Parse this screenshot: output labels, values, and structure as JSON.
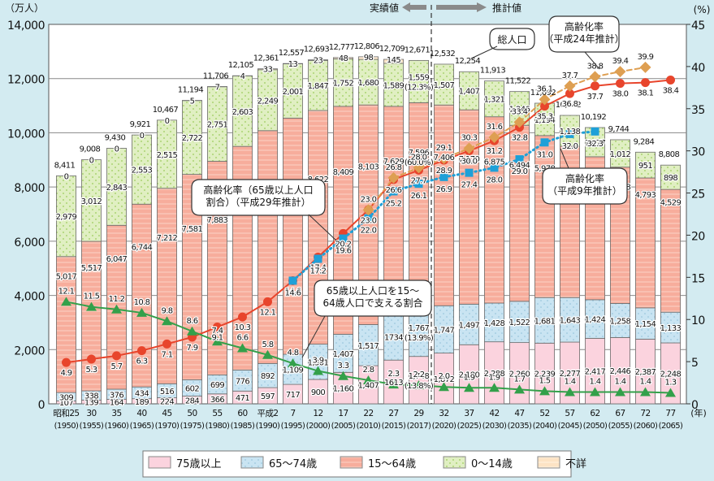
{
  "chart_data": {
    "type": "bar",
    "stacked": true,
    "title": "",
    "ylabel_left": "（万人）",
    "ylabel_right": "(%)",
    "xlabel": "(年)",
    "ylim_left": [
      0,
      14000
    ],
    "ylim_right": [
      0,
      45
    ],
    "yticks_left": [
      "0",
      "2,000",
      "4,000",
      "6,000",
      "8,000",
      "10,000",
      "12,000",
      "14,000"
    ],
    "yticks_right": [
      "0",
      "5",
      "10",
      "15",
      "20",
      "25",
      "30",
      "35",
      "40",
      "45"
    ],
    "header_actual": "実績値",
    "header_projected": "推計値",
    "categories": [
      "昭和25",
      "30",
      "35",
      "40",
      "45",
      "50",
      "55",
      "60",
      "平成2",
      "7",
      "12",
      "17",
      "22",
      "27",
      "29",
      "32",
      "37",
      "42",
      "47",
      "52",
      "57",
      "62",
      "67",
      "72",
      "77"
    ],
    "categories_western": [
      "(1950)",
      "(1955)",
      "(1960)",
      "(1965)",
      "(1970)",
      "(1975)",
      "(1980)",
      "(1985)",
      "(1990)",
      "(1995)",
      "(2000)",
      "(2005)",
      "(2010)",
      "(2015)",
      "(2017)",
      "(2020)",
      "(2025)",
      "(2030)",
      "(2035)",
      "(2040)",
      "(2045)",
      "(2050)",
      "(2055)",
      "(2060)",
      "(2065)"
    ],
    "series": [
      {
        "name": "75歳以上",
        "color": "#fbd3de",
        "values": [
          107,
          139,
          164,
          189,
          224,
          284,
          366,
          471,
          597,
          717,
          900,
          1160,
          1407,
          1613,
          1748,
          1872,
          2180,
          2288,
          2260,
          2239,
          2277,
          2417,
          2446,
          2387,
          2248
        ],
        "labels": [
          "107",
          "139",
          "164",
          "189",
          "224",
          "284",
          "366",
          "471",
          "597",
          "717",
          "900",
          "1,160",
          "1,407",
          "1613",
          "1,748\n(13.8%)",
          "1,872",
          "2,180",
          "2,288",
          "2,260",
          "2,239",
          "2,277",
          "2,417",
          "2,446",
          "2,387",
          "2,248"
        ]
      },
      {
        "name": "65～74歳",
        "color": "#c9e4f2",
        "values": [
          309,
          338,
          376,
          434,
          516,
          602,
          699,
          776,
          892,
          1109,
          1301,
          1407,
          1517,
          1734,
          1767,
          1747,
          1497,
          1428,
          1522,
          1681,
          1643,
          1424,
          1258,
          1154,
          1133
        ],
        "labels": [
          "309",
          "338",
          "376",
          "434",
          "516",
          "602",
          "699",
          "776",
          "892",
          "1,109",
          "1,301",
          "1,407",
          "1,517",
          "1734",
          "1,767\n(13.9%)",
          "1,747",
          "1,497",
          "1,428",
          "1,522",
          "1,681",
          "1,643",
          "1,424",
          "1,258",
          "1,154",
          "1,133"
        ]
      },
      {
        "name": "15～64歳",
        "color": "#f7ad9c",
        "values": [
          5017,
          5517,
          6047,
          6744,
          7212,
          7581,
          7883,
          8251,
          8590,
          8716,
          8622,
          8409,
          8103,
          7629,
          7596,
          7406,
          7170,
          6875,
          6494,
          5978,
          5584,
          5275,
          5028,
          4793,
          4529
        ],
        "labels": [
          "5,017",
          "5,517",
          "6,047",
          "6,744",
          "7,212",
          "7,581",
          "7,883",
          "8,251",
          "8,590",
          "8,716",
          "8,622",
          "8,409",
          "8,103",
          "7,629",
          "7,596\n(60.0%)",
          "7,406",
          "7,170",
          "6,875",
          "6,494",
          "5,978",
          "5,584",
          "5,275",
          "5,028",
          "4,793",
          "4,529"
        ]
      },
      {
        "name": "0～14歳",
        "color": "#e0efc2",
        "values": [
          2979,
          3012,
          2843,
          2553,
          2515,
          2722,
          2751,
          2603,
          2249,
          2001,
          1847,
          1752,
          1680,
          1589,
          1559,
          1507,
          1407,
          1321,
          1246,
          1194,
          1138,
          1077,
          1012,
          951,
          898
        ],
        "labels": [
          "2,979",
          "3,012",
          "2,843",
          "2,553",
          "2,515",
          "2,722",
          "2,751",
          "2,603",
          "2,249",
          "2,001",
          "1,847",
          "1,752",
          "1,680",
          "1,589",
          "1,559\n(12.3%)",
          "1,507",
          "1,407",
          "1,321",
          "1,246",
          "1,194",
          "1,138",
          "1,077",
          "1,012",
          "951",
          "898"
        ]
      },
      {
        "name": "不詳",
        "color": "#fde3c4",
        "values": [
          0,
          0,
          0,
          0,
          0,
          5,
          7,
          4,
          33,
          13,
          23,
          48,
          98,
          145,
          null,
          null,
          null,
          null,
          null,
          null,
          null,
          null,
          null,
          null,
          null
        ],
        "labels": [
          "0",
          "0",
          "0",
          "0",
          "0",
          "5",
          "7",
          "4",
          "33",
          "13",
          "23",
          "48",
          "98",
          "145",
          "",
          "",
          "",
          "",
          "",
          "",
          "",
          "",
          "",
          "",
          ""
        ]
      }
    ],
    "totals": [
      "8,411",
      "9,008",
      "9,430",
      "9,921",
      "10,467",
      "11,194",
      "11,706",
      "12,105",
      "12,361",
      "12,557",
      "12,693",
      "12,777",
      "12,806",
      "12,709",
      "12,671",
      "12,532",
      "12,254",
      "11,913",
      "11,522",
      "11,092",
      "10,642",
      "10,192",
      "9,744",
      "9,284",
      "8,808"
    ],
    "lines": [
      {
        "name": "高齢化率（65歳以上人口割合）（平成29年推計）",
        "color": "#e8452c",
        "marker": "circle",
        "values": [
          4.9,
          5.3,
          5.7,
          6.3,
          7.1,
          7.9,
          9.1,
          10.3,
          12.1,
          14.6,
          17.4,
          20.2,
          23.0,
          26.6,
          27.7,
          28.9,
          30.0,
          31.2,
          32.8,
          35.3,
          36.8,
          37.7,
          38.0,
          38.1,
          38.4
        ]
      },
      {
        "name": "65歳以上人口を15～64歳人口で支える割合",
        "color": "#33a04a",
        "marker": "triangle",
        "values": [
          12.1,
          11.5,
          11.2,
          10.8,
          9.8,
          8.6,
          7.4,
          6.6,
          5.8,
          4.8,
          3.9,
          3.3,
          2.8,
          2.3,
          2.2,
          2.0,
          1.9,
          1.9,
          1.7,
          1.5,
          1.4,
          1.4,
          1.4,
          1.4,
          1.3
        ]
      },
      {
        "name": "高齢化率（平成9年推計）",
        "color": "#1ea0d8",
        "marker": "square",
        "dotted": true,
        "values": [
          null,
          null,
          null,
          null,
          null,
          null,
          null,
          null,
          null,
          14.6,
          17.2,
          19.6,
          22.0,
          25.2,
          26.1,
          26.9,
          27.4,
          28.0,
          29.0,
          31.0,
          32.0,
          32.3,
          null,
          null,
          null
        ]
      },
      {
        "name": "高齢化率（平成24年推計）",
        "color": "#de9f52",
        "marker": "diamond",
        "dashed": true,
        "values": [
          null,
          null,
          null,
          null,
          null,
          null,
          null,
          null,
          null,
          null,
          null,
          null,
          23.0,
          26.8,
          28.0,
          29.1,
          30.3,
          31.6,
          33.4,
          36.1,
          37.7,
          38.8,
          39.4,
          39.9,
          null
        ]
      }
    ],
    "annotations": [
      {
        "text": "総人口"
      },
      {
        "text": "高齢化率\n（平成24年推計）"
      },
      {
        "text": "高齢化率（65歳以上人口\n割合）（平成29年推計）"
      },
      {
        "text": "高齢化率\n（平成9年推計）"
      },
      {
        "text": "65歳以上人口を15～\n64歳人口で支える割合"
      }
    ],
    "legend": {
      "position": "bottom",
      "items": [
        "75歳以上",
        "65～74歳",
        "15～64歳",
        "0～14歳",
        "不詳"
      ]
    },
    "grid": true
  }
}
